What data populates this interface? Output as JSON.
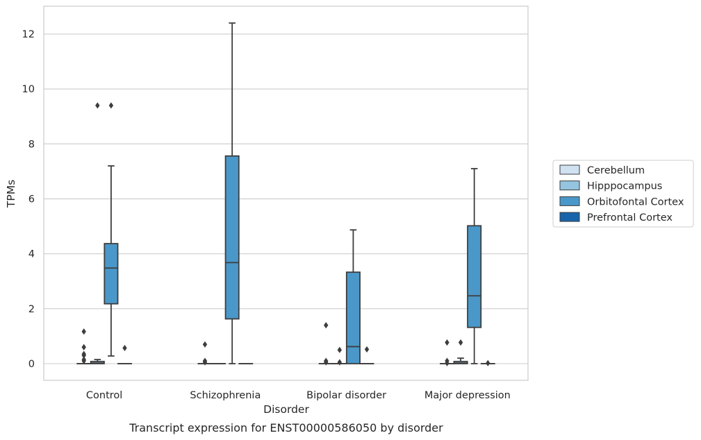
{
  "chart_data": {
    "type": "box",
    "caption": "Transcript expression for ENST00000586050 by disorder",
    "xlabel": "Disorder",
    "ylabel": "TPMs",
    "ylim": [
      -0.6,
      13
    ],
    "yticks": [
      0,
      2,
      4,
      6,
      8,
      10,
      12
    ],
    "grid": "horizontal",
    "legend_position": "right",
    "categories": [
      "Control",
      "Schizophrenia",
      "Bipolar disorder",
      "Major depression"
    ],
    "series": [
      {
        "name": "Cerebellum",
        "color": "#d0e1f2",
        "boxes": [
          {
            "q1": 0,
            "median": 0,
            "q3": 0,
            "whisker_low": 0,
            "whisker_high": 0,
            "outliers": [
              0.1,
              0.15,
              0.3,
              0.35,
              0.6,
              1.17
            ]
          },
          {
            "q1": 0,
            "median": 0,
            "q3": 0,
            "whisker_low": 0,
            "whisker_high": 0,
            "outliers": [
              0.05,
              0.1,
              0.7
            ]
          },
          {
            "q1": 0,
            "median": 0,
            "q3": 0,
            "whisker_low": 0,
            "whisker_high": 0,
            "outliers": [
              0.05,
              0.1,
              1.4
            ]
          },
          {
            "q1": 0,
            "median": 0,
            "q3": 0,
            "whisker_low": 0,
            "whisker_high": 0,
            "outliers": [
              0.02,
              0.1,
              0.77
            ]
          }
        ]
      },
      {
        "name": "Hipppocampus",
        "color": "#94c4df",
        "boxes": [
          {
            "q1": 0,
            "median": 0.02,
            "q3": 0.08,
            "whisker_low": 0,
            "whisker_high": 0.15,
            "outliers": [
              9.4
            ]
          },
          {
            "q1": 0,
            "median": 0,
            "q3": 0,
            "whisker_low": 0,
            "whisker_high": 0,
            "outliers": []
          },
          {
            "q1": 0,
            "median": 0,
            "q3": 0,
            "whisker_low": 0,
            "whisker_high": 0,
            "outliers": [
              0.05,
              0.5
            ]
          },
          {
            "q1": 0,
            "median": 0.02,
            "q3": 0.08,
            "whisker_low": 0,
            "whisker_high": 0.2,
            "outliers": [
              0.77
            ]
          }
        ]
      },
      {
        "name": "Orbitofontal Cortex",
        "color": "#4a98c9",
        "boxes": [
          {
            "q1": 2.18,
            "median": 3.48,
            "q3": 4.37,
            "whisker_low": 0.28,
            "whisker_high": 7.2,
            "outliers": [
              9.4
            ]
          },
          {
            "q1": 1.63,
            "median": 3.68,
            "q3": 7.56,
            "whisker_low": 0,
            "whisker_high": 12.4,
            "outliers": []
          },
          {
            "q1": 0,
            "median": 0.62,
            "q3": 3.33,
            "whisker_low": 0,
            "whisker_high": 4.87,
            "outliers": []
          },
          {
            "q1": 1.32,
            "median": 2.47,
            "q3": 5.02,
            "whisker_low": 0,
            "whisker_high": 7.1,
            "outliers": []
          }
        ]
      },
      {
        "name": "Prefrontal Cortex",
        "color": "#1764ab",
        "boxes": [
          {
            "q1": 0,
            "median": 0,
            "q3": 0,
            "whisker_low": 0,
            "whisker_high": 0,
            "outliers": [
              0.57
            ]
          },
          {
            "q1": 0,
            "median": 0,
            "q3": 0,
            "whisker_low": 0,
            "whisker_high": 0,
            "outliers": []
          },
          {
            "q1": 0,
            "median": 0,
            "q3": 0,
            "whisker_low": 0,
            "whisker_high": 0,
            "outliers": [
              0.52
            ]
          },
          {
            "q1": 0,
            "median": 0,
            "q3": 0,
            "whisker_low": 0,
            "whisker_high": 0,
            "outliers": [
              0.02
            ]
          }
        ]
      }
    ]
  }
}
